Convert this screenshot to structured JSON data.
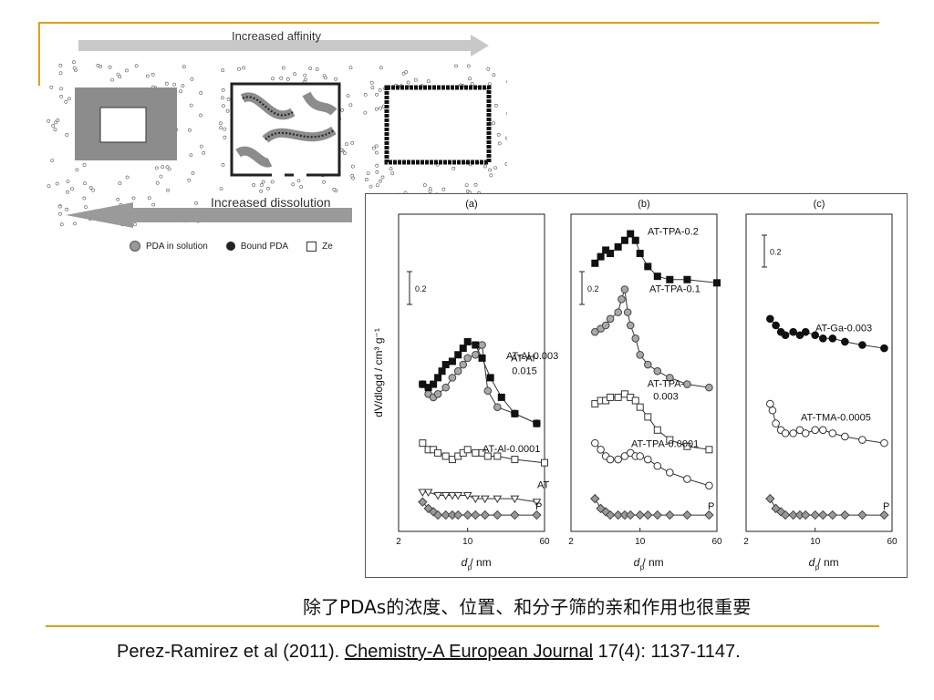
{
  "schematic": {
    "top_arrow_label": "Increased affinity",
    "bottom_arrow_label": "Increased dissolution",
    "legend": [
      {
        "label": "PDA in solution",
        "marker": "grey-circle"
      },
      {
        "label": "Bound PDA",
        "marker": "black-circle"
      },
      {
        "label": "Ze",
        "marker": "open-square"
      }
    ]
  },
  "figure": {
    "panels": [
      "(a)",
      "(b)",
      "(c)"
    ],
    "ylabel": "dV/dlogd / cm³ g⁻¹",
    "xlabel": "d_p / nm",
    "xticks": [
      "2",
      "10",
      "60"
    ],
    "scale_bar": "0.2",
    "curves": {
      "a": [
        "AT-Al-\n0.015",
        "AT-Al-0.003",
        "AT-Al-0.0001",
        "AT",
        "P"
      ],
      "b": [
        "AT-TPA-0.2",
        "AT-TPA-0.1",
        "AT-TPA-\n0.003",
        "AT-TPA-0.0001",
        "P"
      ],
      "c": [
        "AT-Ga-0.003",
        "AT-TMA-0.0005",
        "P"
      ]
    }
  },
  "chart_data": {
    "type": "line",
    "xscale": "log",
    "xlim": [
      2,
      60
    ],
    "x_ticks": [
      2,
      10,
      60
    ],
    "ylabel": "dV/dlogd / cm3 g-1",
    "xlabel": "dp / nm",
    "panels": [
      "(a)",
      "(b)",
      "(c)"
    ],
    "series": [
      {
        "panel": "(a)",
        "name": "AT-Al-0.015",
        "marker": "grey-circle",
        "x": [
          3.5,
          4,
          4.5,
          5,
          6,
          7,
          8,
          9,
          10,
          12,
          14,
          16,
          20,
          30,
          50
        ],
        "y": [
          0.4,
          0.37,
          0.36,
          0.37,
          0.39,
          0.42,
          0.44,
          0.46,
          0.48,
          0.49,
          0.52,
          0.38,
          0.33,
          0.31,
          0.28
        ]
      },
      {
        "panel": "(a)",
        "name": "AT-Al-0.003",
        "marker": "filled-square",
        "x": [
          3.5,
          4,
          4.5,
          5,
          5.5,
          6,
          7,
          8,
          9,
          10,
          12,
          14,
          17,
          22,
          30,
          50
        ],
        "y": [
          0.4,
          0.39,
          0.4,
          0.42,
          0.44,
          0.46,
          0.47,
          0.49,
          0.51,
          0.53,
          0.52,
          0.48,
          0.42,
          0.36,
          0.31,
          0.28
        ]
      },
      {
        "panel": "(a)",
        "name": "AT-Al-0.0001",
        "marker": "open-square",
        "x": [
          3.5,
          4,
          4.5,
          5,
          6,
          7,
          8,
          9,
          10,
          12,
          14,
          16,
          20,
          30,
          60
        ],
        "y": [
          0.22,
          0.2,
          0.2,
          0.19,
          0.18,
          0.17,
          0.18,
          0.19,
          0.2,
          0.19,
          0.19,
          0.18,
          0.18,
          0.17,
          0.16
        ]
      },
      {
        "panel": "(a)",
        "name": "AT",
        "marker": "open-triangle-down",
        "x": [
          3.5,
          4,
          5,
          6,
          7,
          8,
          10,
          12,
          15,
          20,
          30,
          50
        ],
        "y": [
          0.07,
          0.07,
          0.06,
          0.06,
          0.06,
          0.06,
          0.06,
          0.05,
          0.05,
          0.05,
          0.05,
          0.04
        ]
      },
      {
        "panel": "(a)",
        "name": "P",
        "marker": "grey-diamond",
        "x": [
          3.5,
          4,
          4.5,
          5,
          6,
          7,
          8,
          10,
          12,
          15,
          20,
          30,
          50
        ],
        "y": [
          0.04,
          0.02,
          0.01,
          0.0,
          0.0,
          0.0,
          0.0,
          0.0,
          0.0,
          0.0,
          0.0,
          0.0,
          0.0
        ]
      },
      {
        "panel": "(b)",
        "name": "AT-TPA-0.2",
        "marker": "filled-square",
        "x": [
          3.5,
          4,
          4.5,
          5,
          6,
          7,
          8,
          9,
          10,
          12,
          15,
          20,
          30,
          60
        ],
        "y": [
          0.77,
          0.79,
          0.81,
          0.8,
          0.82,
          0.84,
          0.86,
          0.84,
          0.8,
          0.76,
          0.73,
          0.72,
          0.72,
          0.71
        ]
      },
      {
        "panel": "(b)",
        "name": "AT-TPA-0.1",
        "marker": "grey-circle",
        "x": [
          3.5,
          4,
          4.5,
          5,
          6,
          6.5,
          7,
          7.5,
          8,
          9,
          10,
          12,
          15,
          20,
          30,
          50
        ],
        "y": [
          0.56,
          0.57,
          0.58,
          0.6,
          0.62,
          0.66,
          0.69,
          0.62,
          0.58,
          0.54,
          0.49,
          0.46,
          0.44,
          0.42,
          0.4,
          0.39
        ]
      },
      {
        "panel": "(b)",
        "name": "AT-TPA-0.003",
        "marker": "open-square",
        "x": [
          3.5,
          4,
          4.5,
          5,
          6,
          7,
          8,
          9,
          10,
          12,
          15,
          20,
          30,
          50
        ],
        "y": [
          0.34,
          0.35,
          0.35,
          0.36,
          0.36,
          0.37,
          0.36,
          0.35,
          0.33,
          0.3,
          0.26,
          0.23,
          0.21,
          0.2
        ]
      },
      {
        "panel": "(b)",
        "name": "AT-TPA-0.0001",
        "marker": "open-circle",
        "x": [
          3.5,
          4,
          4.5,
          5,
          6,
          7,
          8,
          9,
          10,
          12,
          15,
          20,
          30,
          50
        ],
        "y": [
          0.22,
          0.2,
          0.18,
          0.17,
          0.17,
          0.18,
          0.19,
          0.18,
          0.18,
          0.17,
          0.15,
          0.13,
          0.11,
          0.09
        ]
      },
      {
        "panel": "(b)",
        "name": "P",
        "marker": "grey-diamond",
        "x": [
          3.5,
          4,
          4.5,
          5,
          6,
          7,
          8,
          10,
          12,
          15,
          20,
          30,
          50
        ],
        "y": [
          0.05,
          0.02,
          0.01,
          0.0,
          0.0,
          0.0,
          0.0,
          0.0,
          0.0,
          0.0,
          0.0,
          0.0,
          0.0
        ]
      },
      {
        "panel": "(c)",
        "name": "AT-Ga-0.003",
        "marker": "filled-circle",
        "x": [
          3.5,
          4,
          4.5,
          5,
          6,
          7,
          8,
          10,
          12,
          15,
          20,
          30,
          50
        ],
        "y": [
          0.6,
          0.58,
          0.56,
          0.55,
          0.56,
          0.55,
          0.56,
          0.55,
          0.54,
          0.54,
          0.53,
          0.52,
          0.51
        ]
      },
      {
        "panel": "(c)",
        "name": "AT-TMA-0.0005",
        "marker": "open-circle",
        "x": [
          3.5,
          3.7,
          4,
          4.5,
          5,
          6,
          7,
          8,
          10,
          12,
          15,
          20,
          30,
          50
        ],
        "y": [
          0.34,
          0.32,
          0.28,
          0.26,
          0.25,
          0.25,
          0.26,
          0.25,
          0.26,
          0.26,
          0.25,
          0.24,
          0.23,
          0.22
        ]
      },
      {
        "panel": "(c)",
        "name": "P",
        "marker": "grey-diamond",
        "x": [
          3.5,
          4,
          4.5,
          5,
          6,
          7,
          8,
          10,
          12,
          15,
          20,
          30,
          50
        ],
        "y": [
          0.05,
          0.02,
          0.01,
          0.0,
          0.0,
          0.0,
          0.0,
          0.0,
          0.0,
          0.0,
          0.0,
          0.0,
          0.0
        ]
      }
    ]
  },
  "caption": "除了PDAs的浓度、位置、和分子筛的亲和作用也很重要",
  "citation": {
    "before": "Perez-Ramirez et al (2011). ",
    "journal": "Chemistry-A European Journal",
    "after": " 17(4): 1137-1147."
  }
}
